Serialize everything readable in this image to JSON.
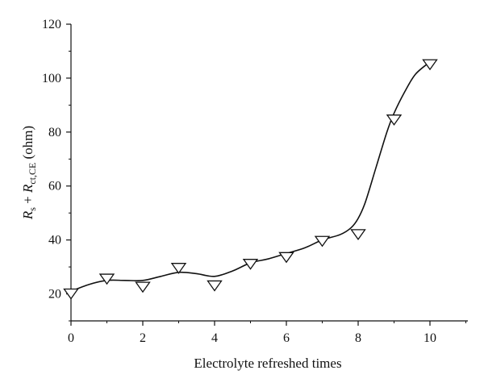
{
  "chart_data": {
    "type": "scatter",
    "xlabel": "Electrolyte refreshed times",
    "ylabel_parts": [
      "R",
      "s",
      " + ",
      "R",
      "ct,CE",
      " (ohm)"
    ],
    "xlim": [
      0,
      10
    ],
    "ylim": [
      10,
      120
    ],
    "x_ticks": [
      0,
      2,
      4,
      6,
      8,
      10
    ],
    "y_ticks": [
      20,
      40,
      60,
      80,
      100,
      120
    ],
    "grid": false,
    "marker": "open-down-triangle",
    "series": [
      {
        "x": [
          0,
          1,
          2,
          3,
          4,
          5,
          6,
          7,
          8,
          9,
          10
        ],
        "values": [
          20.5,
          26,
          23,
          30,
          23.5,
          31.5,
          34,
          40,
          42.5,
          85,
          105.5
        ]
      }
    ],
    "fit_curve": {
      "x": [
        0,
        0.5,
        1,
        1.5,
        2,
        2.5,
        3,
        3.5,
        4,
        4.5,
        5,
        5.5,
        6,
        6.5,
        7,
        7.5,
        7.8,
        8,
        8.2,
        8.5,
        8.8,
        9,
        9.3,
        9.6,
        10
      ],
      "values": [
        21,
        23.5,
        25,
        25,
        25,
        26.5,
        28,
        27.5,
        26.5,
        28.5,
        31.5,
        33,
        35,
        37,
        40,
        42,
        44.5,
        48,
        54,
        67,
        80,
        87,
        95,
        101.5,
        106
      ]
    }
  }
}
